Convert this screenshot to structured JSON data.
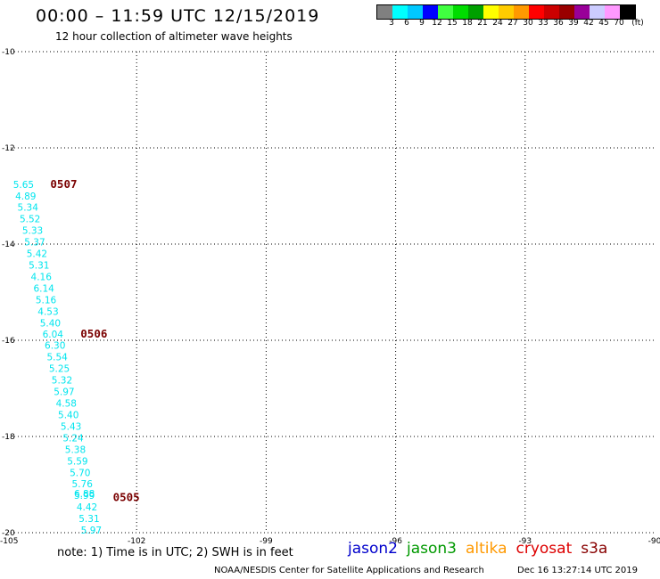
{
  "title": "00:00 – 11:59 UTC 12/15/2019",
  "subtitle": "12 hour collection of altimeter wave heights",
  "colorbar": {
    "colors": [
      "#808080",
      "#00ffff",
      "#00c8ff",
      "#0000ff",
      "#40ff40",
      "#00dd00",
      "#00a000",
      "#ffff00",
      "#ffcc00",
      "#ff9900",
      "#ff0000",
      "#cc0000",
      "#990000",
      "#990099",
      "#ccccff",
      "#ff99ff",
      "#000000"
    ],
    "labels": [
      "3",
      "6",
      "9",
      "12",
      "15",
      "18",
      "21",
      "24",
      "27",
      "30",
      "33",
      "36",
      "39",
      "42",
      "45",
      "70",
      "(ft)"
    ]
  },
  "map": {
    "lat_ticks": [
      "-10",
      "-12",
      "-14",
      "-16",
      "-18",
      "-20"
    ],
    "lon_ticks": [
      "-105",
      "-102",
      "-99",
      "-96",
      "-93",
      "-90"
    ],
    "lat_range": [
      -20,
      -10
    ],
    "lon_range": [
      -105,
      -90
    ],
    "swh_points": [
      {
        "lon": -104.62,
        "lat": -12.83,
        "v": "5.65"
      },
      {
        "lon": -104.57,
        "lat": -13.07,
        "v": "4.89"
      },
      {
        "lon": -104.52,
        "lat": -13.31,
        "v": "5.34"
      },
      {
        "lon": -104.47,
        "lat": -13.55,
        "v": "5.52"
      },
      {
        "lon": -104.41,
        "lat": -13.79,
        "v": "5.33"
      },
      {
        "lon": -104.36,
        "lat": -14.03,
        "v": "5.37"
      },
      {
        "lon": -104.31,
        "lat": -14.27,
        "v": "5.42"
      },
      {
        "lon": -104.26,
        "lat": -14.51,
        "v": "5.31"
      },
      {
        "lon": -104.21,
        "lat": -14.75,
        "v": "4.16"
      },
      {
        "lon": -104.15,
        "lat": -14.99,
        "v": "6.14"
      },
      {
        "lon": -104.1,
        "lat": -15.23,
        "v": "5.16"
      },
      {
        "lon": -104.05,
        "lat": -15.47,
        "v": "4.53"
      },
      {
        "lon": -104.0,
        "lat": -15.71,
        "v": "5.40"
      },
      {
        "lon": -103.94,
        "lat": -15.94,
        "v": "6.04"
      },
      {
        "lon": -103.89,
        "lat": -16.18,
        "v": "6.30"
      },
      {
        "lon": -103.84,
        "lat": -16.42,
        "v": "5.54"
      },
      {
        "lon": -103.79,
        "lat": -16.66,
        "v": "5.25"
      },
      {
        "lon": -103.73,
        "lat": -16.9,
        "v": "5.32"
      },
      {
        "lon": -103.68,
        "lat": -17.14,
        "v": "5.97"
      },
      {
        "lon": -103.63,
        "lat": -17.38,
        "v": "4.58"
      },
      {
        "lon": -103.58,
        "lat": -17.62,
        "v": "5.40"
      },
      {
        "lon": -103.52,
        "lat": -17.86,
        "v": "5.43"
      },
      {
        "lon": -103.47,
        "lat": -18.1,
        "v": "5.24"
      },
      {
        "lon": -103.42,
        "lat": -18.34,
        "v": "5.38"
      },
      {
        "lon": -103.37,
        "lat": -18.58,
        "v": "5.59"
      },
      {
        "lon": -103.31,
        "lat": -18.82,
        "v": "5.70"
      },
      {
        "lon": -103.26,
        "lat": -19.06,
        "v": "5.76"
      },
      {
        "lon": -103.21,
        "lat": -19.26,
        "v": "6.88"
      },
      {
        "lon": -103.21,
        "lat": -19.3,
        "v": "5.99"
      },
      {
        "lon": -103.15,
        "lat": -19.54,
        "v": "4.42"
      },
      {
        "lon": -103.1,
        "lat": -19.78,
        "v": "5.31"
      },
      {
        "lon": -103.05,
        "lat": -20.02,
        "v": "5.97"
      }
    ],
    "rev_labels": [
      {
        "lon": -104.0,
        "lat": -12.83,
        "t": "0507"
      },
      {
        "lon": -103.3,
        "lat": -15.94,
        "t": "0506"
      },
      {
        "lon": -102.55,
        "lat": -19.34,
        "t": "0505"
      }
    ]
  },
  "note": "note:  1) Time is in UTC;  2) SWH is in feet",
  "legend": [
    {
      "name": "jason2",
      "color": "#0000cc"
    },
    {
      "name": "jason3",
      "color": "#009900"
    },
    {
      "name": "altika",
      "color": "#ff9900"
    },
    {
      "name": "cryosat",
      "color": "#dd0000"
    },
    {
      "name": "s3a",
      "color": "#880000"
    }
  ],
  "footer": "NOAA/NESDIS Center for Satellite Applications and Research",
  "timestamp": "Dec 16 13:27:14 UTC 2019"
}
